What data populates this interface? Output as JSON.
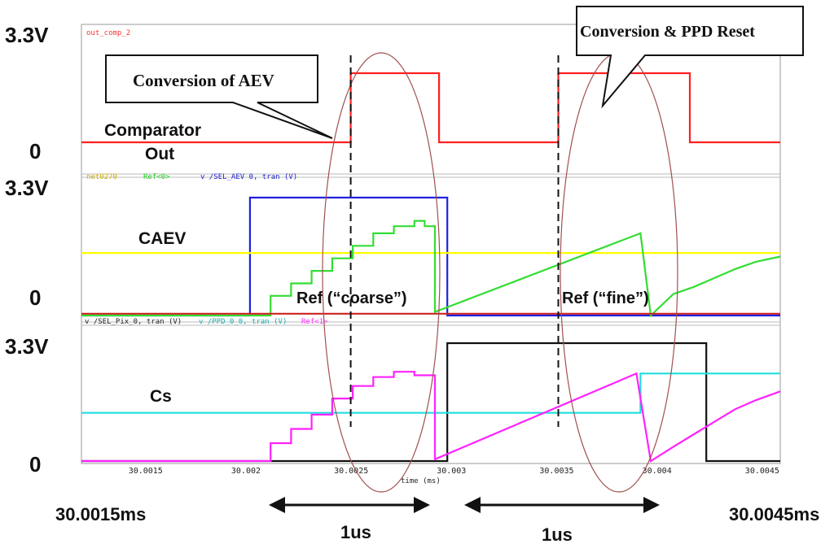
{
  "chart_data": {
    "type": "line",
    "xlabel": "time (ms)",
    "xlim": [
      30.0012,
      30.0046
    ],
    "x_ticks": [
      "30.0015",
      "30.002",
      "30.0025",
      "30.003",
      "30.0035",
      "30.004",
      "30.0045"
    ],
    "x_range_labels": {
      "start": "30.0015ms",
      "end": "30.0045ms"
    },
    "y_labels": {
      "top": "3.3V",
      "bottom": "0"
    },
    "panels": [
      {
        "id": "comparator",
        "legend": [
          {
            "text": "out_comp_2",
            "color": "#ff3333"
          }
        ],
        "series": [
          {
            "color": "#ff2020",
            "x": [
              30.0012,
              30.00251,
              30.00251,
              30.00294,
              30.00294,
              30.00352,
              30.00352,
              30.00416,
              30.00416,
              30.0046
            ],
            "y": [
              0,
              0,
              3.3,
              3.3,
              0,
              0,
              3.3,
              3.3,
              0,
              0
            ]
          }
        ],
        "labels": [
          "Comparator",
          "Out"
        ]
      },
      {
        "id": "caev",
        "legend": [
          {
            "text": "net0270",
            "color": "#e0c000"
          },
          {
            "text": "Ref<0>",
            "color": "#22cc22"
          },
          {
            "text": "v /SEL_AEV 0, tran (V)",
            "color": "#2222cc"
          }
        ],
        "series": [
          {
            "color": "#2020e0",
            "x": [
              30.0012,
              30.00202,
              30.00202,
              30.00298,
              30.00298,
              30.0046
            ],
            "y": [
              0,
              0,
              3.3,
              3.3,
              0,
              0
            ]
          },
          {
            "color": "#ffff00",
            "x": [
              30.0012,
              30.0046
            ],
            "y": [
              1.75,
              1.75
            ]
          },
          {
            "color": "#33dd33",
            "x": [
              30.0012,
              30.00212,
              30.00212,
              30.00222,
              30.00222,
              30.00232,
              30.00232,
              30.00242,
              30.00242,
              30.00252,
              30.00252,
              30.00262,
              30.00262,
              30.00272,
              30.00272,
              30.00282,
              30.00282,
              30.00287,
              30.00287,
              30.00292,
              30.00292,
              30.00392,
              30.00392,
              30.00397,
              30.00397,
              30.00408,
              30.00408,
              30.00418,
              30.00418,
              30.00428,
              30.00428,
              30.00438,
              30.00438,
              30.00448,
              30.00448,
              30.0046
            ],
            "y": [
              0,
              0,
              0.55,
              0.55,
              0.9,
              0.9,
              1.25,
              1.25,
              1.6,
              1.6,
              1.95,
              1.95,
              2.3,
              2.3,
              2.5,
              2.5,
              2.65,
              2.65,
              2.5,
              2.5,
              0.1,
              2.3,
              2.3,
              0,
              0,
              0.6,
              0.6,
              0.8,
              0.8,
              1.05,
              1.05,
              1.3,
              1.3,
              1.5,
              1.5,
              1.65
            ]
          },
          {
            "color": "#cc2222",
            "x": [
              30.0012,
              30.0046
            ],
            "y": [
              0.05,
              0.05
            ]
          }
        ],
        "labels": [
          "CAEV"
        ],
        "annotations": [
          "Ref (“coarse”)",
          "Ref (“fine”)"
        ]
      },
      {
        "id": "cs",
        "legend": [
          {
            "text": "v /SEL_Pix_0, tran (V)",
            "color": "#222222"
          },
          {
            "text": "v /PPD_0_0, tran (V)",
            "color": "#22cccc"
          },
          {
            "text": "Ref<1>",
            "color": "#ff33ff"
          }
        ],
        "series": [
          {
            "color": "#111111",
            "x": [
              30.0012,
              30.00298,
              30.00298,
              30.00424,
              30.00424,
              30.0046
            ],
            "y": [
              0,
              0,
              3.3,
              3.3,
              0,
              0
            ]
          },
          {
            "color": "#22dddd",
            "x": [
              30.0012,
              30.00392,
              30.00392,
              30.0046
            ],
            "y": [
              1.35,
              1.35,
              2.45,
              2.45
            ]
          },
          {
            "color": "#ff22ff",
            "x": [
              30.0012,
              30.00212,
              30.00212,
              30.00222,
              30.00222,
              30.00232,
              30.00232,
              30.00242,
              30.00242,
              30.00252,
              30.00252,
              30.00262,
              30.00262,
              30.00272,
              30.00272,
              30.00282,
              30.00282,
              30.00292,
              30.00292,
              30.0039,
              30.0039,
              30.00397,
              30.00397,
              30.00408,
              30.00408,
              30.00418,
              30.00418,
              30.00428,
              30.00428,
              30.00438,
              30.00438,
              30.00448,
              30.00448,
              30.0046
            ],
            "y": [
              0,
              0,
              0.5,
              0.5,
              0.9,
              0.9,
              1.3,
              1.3,
              1.75,
              1.75,
              2.1,
              2.1,
              2.35,
              2.35,
              2.5,
              2.5,
              2.4,
              2.4,
              0.05,
              2.45,
              2.45,
              0,
              0,
              0.4,
              0.4,
              0.75,
              0.75,
              1.1,
              1.1,
              1.45,
              1.45,
              1.7,
              1.7,
              1.95
            ]
          }
        ],
        "labels": [
          "Cs"
        ]
      }
    ],
    "callouts": [
      "Conversion of AEV",
      "Conversion & PPD Reset"
    ],
    "durations": [
      "1us",
      "1us"
    ],
    "dashed_markers_x": [
      30.00251,
      30.00352
    ]
  }
}
